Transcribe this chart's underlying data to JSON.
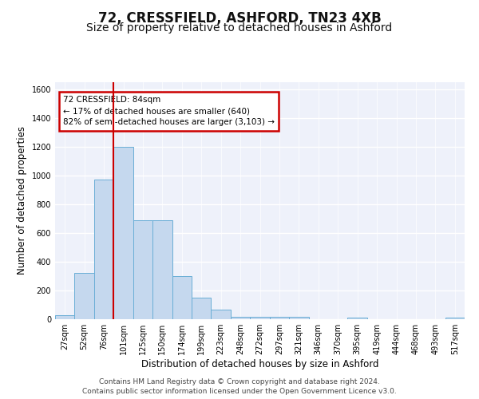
{
  "title1": "72, CRESSFIELD, ASHFORD, TN23 4XB",
  "title2": "Size of property relative to detached houses in Ashford",
  "xlabel": "Distribution of detached houses by size in Ashford",
  "ylabel": "Number of detached properties",
  "bin_labels": [
    "27sqm",
    "52sqm",
    "76sqm",
    "101sqm",
    "125sqm",
    "150sqm",
    "174sqm",
    "199sqm",
    "223sqm",
    "248sqm",
    "272sqm",
    "297sqm",
    "321sqm",
    "346sqm",
    "370sqm",
    "395sqm",
    "419sqm",
    "444sqm",
    "468sqm",
    "493sqm",
    "517sqm"
  ],
  "bar_values": [
    25,
    320,
    970,
    1200,
    690,
    690,
    300,
    150,
    65,
    15,
    15,
    15,
    15,
    0,
    0,
    10,
    0,
    0,
    0,
    0,
    12
  ],
  "bar_color": "#c5d8ee",
  "bar_edge_color": "#6aaed6",
  "vline_x": 2.5,
  "vline_color": "#cc0000",
  "annotation_text": "72 CRESSFIELD: 84sqm\n← 17% of detached houses are smaller (640)\n82% of semi-detached houses are larger (3,103) →",
  "annotation_box_color": "#cc0000",
  "ylim": [
    0,
    1650
  ],
  "yticks": [
    0,
    200,
    400,
    600,
    800,
    1000,
    1200,
    1400,
    1600
  ],
  "footer1": "Contains HM Land Registry data © Crown copyright and database right 2024.",
  "footer2": "Contains public sector information licensed under the Open Government Licence v3.0.",
  "bg_color": "#eef1fa",
  "grid_color": "#ffffff",
  "title1_fontsize": 12,
  "title2_fontsize": 10,
  "axis_label_fontsize": 8.5,
  "tick_fontsize": 7,
  "footer_fontsize": 6.5
}
